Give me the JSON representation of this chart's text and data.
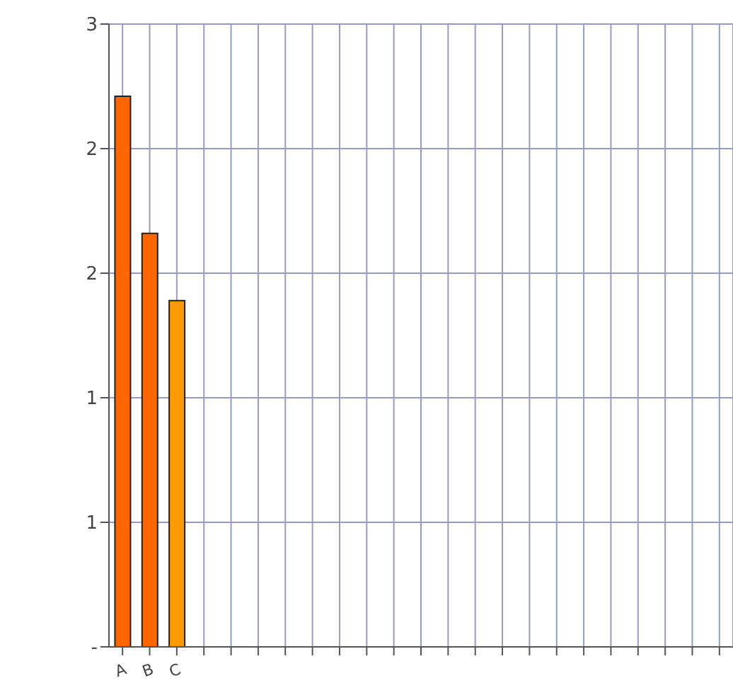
{
  "chart_data": {
    "type": "bar",
    "categories": [
      "A",
      "B",
      "C",
      null,
      null,
      null,
      null,
      null,
      null,
      null,
      null,
      null,
      null,
      null,
      null,
      null,
      null,
      null,
      null,
      null,
      null,
      null,
      null
    ],
    "values": [
      2.21,
      1.66,
      1.39,
      null,
      null,
      null,
      null,
      null,
      null,
      null,
      null,
      null,
      null,
      null,
      null,
      null,
      null,
      null,
      null,
      null,
      null,
      null,
      null
    ],
    "colors": [
      "#ff6600",
      "#ff6600",
      "#ff9900",
      null,
      null,
      null,
      null,
      null,
      null,
      null,
      null,
      null,
      null,
      null,
      null,
      null,
      null,
      null,
      null,
      null,
      null,
      null,
      null
    ],
    "ylim": [
      0,
      2.5
    ],
    "yticks": [
      {
        "value": 0,
        "label": "-"
      },
      {
        "value": 0.5,
        "label": "1"
      },
      {
        "value": 1,
        "label": "1"
      },
      {
        "value": 1.5,
        "label": "2"
      },
      {
        "value": 2,
        "label": "2"
      },
      {
        "value": 2.5,
        "label": "3"
      }
    ],
    "grid": true
  }
}
